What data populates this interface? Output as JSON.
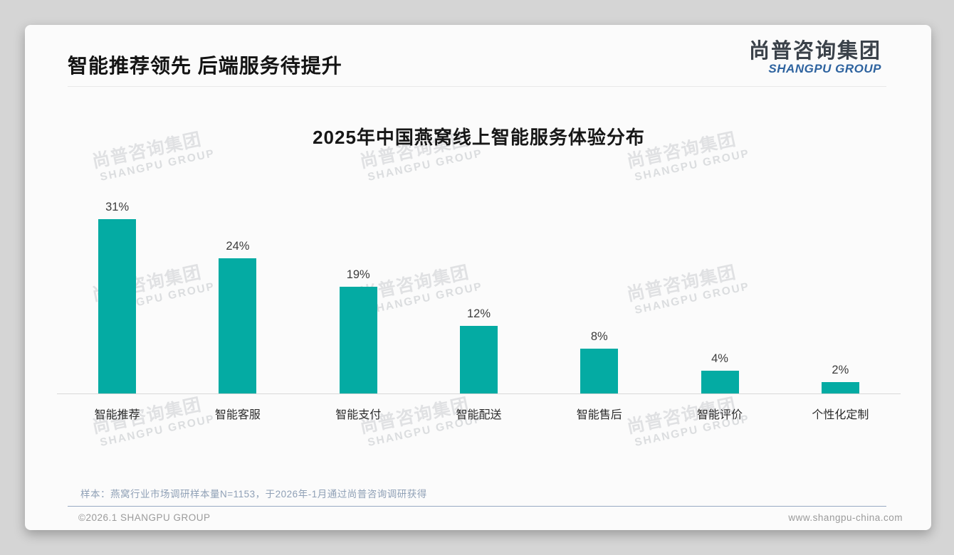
{
  "page": {
    "title": "智能推荐领先 后端服务待提升",
    "logo": {
      "cn": "尚普咨询集团",
      "en": "SHANGPU GROUP"
    },
    "watermark": {
      "cn": "尚普咨询集团",
      "en": "SHANGPU GROUP"
    },
    "footnote": "样本：燕窝行业市场调研样本量N=1153，于2026年-1月通过尚普咨询调研获得",
    "footer_left": "©2026.1 SHANGPU GROUP",
    "footer_right": "www.shangpu-china.com"
  },
  "chart_data": {
    "type": "bar",
    "title": "2025年中国燕窝线上智能服务体验分布",
    "categories": [
      "智能推荐",
      "智能客服",
      "智能支付",
      "智能配送",
      "智能售后",
      "智能评价",
      "个性化定制"
    ],
    "values": [
      31,
      24,
      19,
      12,
      8,
      4,
      2
    ],
    "value_labels": [
      "31%",
      "24%",
      "19%",
      "12%",
      "8%",
      "4%",
      "2%"
    ],
    "unit": "%",
    "xlabel": "",
    "ylabel": "",
    "ylim": [
      0,
      33
    ],
    "grid": false,
    "legend": false,
    "bar_color": "#04aba3"
  },
  "colors": {
    "bar_teal": "#04aba3",
    "logo_blue": "#2e639f",
    "footnote_bluegray": "#8fa0b6",
    "card_bg": "#fbfbfb",
    "outer_bg": "#d5d5d5"
  }
}
